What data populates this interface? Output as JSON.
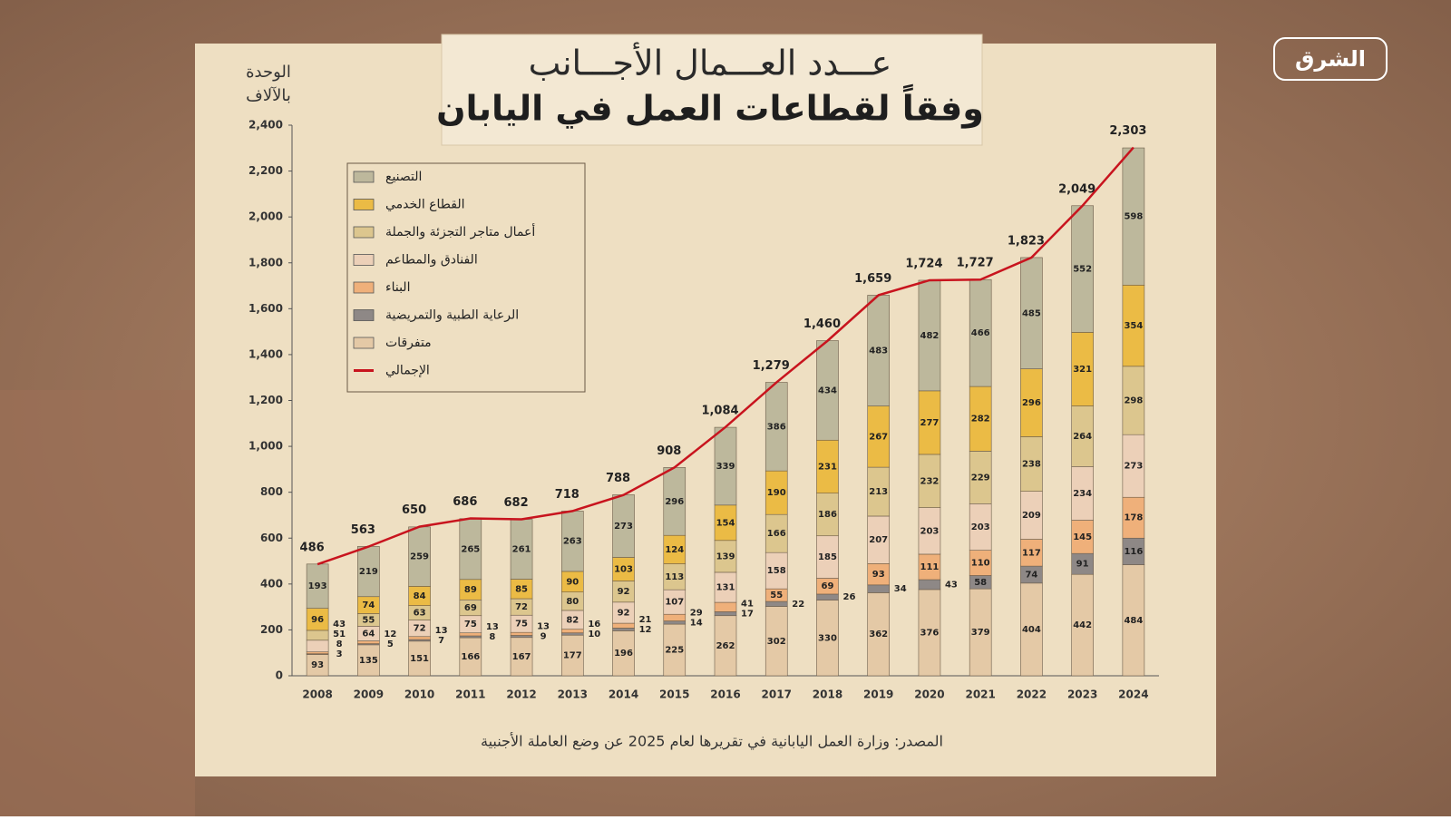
{
  "chart_data": {
    "type": "bar",
    "stacked": true,
    "title": "عـــدد العـــمال الأجـــانب",
    "subtitle": "وفقاً لقطاعات العمل في اليابان",
    "y_label": [
      "الوحدة",
      "بالآلاف"
    ],
    "source": "المصدر: وزارة العمل اليابانية في تقريرها لعام 2025 عن وضع العاملة الأجنبية",
    "logo": "الشرق",
    "legend": "upper left",
    "grid": false,
    "categories": [
      "2008",
      "2009",
      "2010",
      "2011",
      "2012",
      "2013",
      "2014",
      "2015",
      "2016",
      "2017",
      "2018",
      "2019",
      "2020",
      "2021",
      "2022",
      "2023",
      "2024"
    ],
    "ylim": [
      0,
      2400
    ],
    "yticks": [
      0,
      200,
      400,
      600,
      800,
      {
        "value": 1000,
        "label": "1,000"
      },
      {
        "value": 1200,
        "label": "1,200"
      },
      {
        "value": 1400,
        "label": "1,400"
      },
      {
        "value": 1600,
        "label": "1,600"
      },
      {
        "value": 1800,
        "label": "1,800"
      },
      {
        "value": 2000,
        "label": "2,000"
      },
      {
        "value": 2200,
        "label": "2,200"
      },
      {
        "value": 2400,
        "label": "2,400"
      }
    ],
    "series": [
      {
        "name": "متفرقات",
        "color": "#e4c9a6",
        "values": [
          93,
          135,
          151,
          166,
          167,
          177,
          196,
          225,
          262,
          302,
          330,
          362,
          376,
          379,
          404,
          442,
          484
        ]
      },
      {
        "name": "الرعاية الطبية والتمريضية",
        "color": "#8e8886",
        "values": [
          3,
          5,
          7,
          8,
          9,
          10,
          12,
          14,
          17,
          22,
          26,
          34,
          43,
          58,
          74,
          91,
          116
        ]
      },
      {
        "name": "البناء",
        "color": "#efb07a",
        "values": [
          8,
          12,
          13,
          13,
          13,
          16,
          21,
          29,
          41,
          55,
          69,
          93,
          111,
          110,
          117,
          145,
          178
        ]
      },
      {
        "name": "الفنادق والمطاعم",
        "color": "#ecd0b8",
        "values": [
          51,
          64,
          72,
          75,
          75,
          82,
          92,
          107,
          131,
          158,
          185,
          207,
          203,
          203,
          209,
          234,
          273
        ]
      },
      {
        "name": "أعمال متاجر التجزئة والجملة",
        "color": "#dcc68e",
        "values": [
          43,
          55,
          63,
          69,
          72,
          80,
          92,
          113,
          139,
          166,
          186,
          213,
          232,
          229,
          238,
          264,
          298
        ]
      },
      {
        "name": "القطاع الخدمي",
        "color": "#ebbb45",
        "values": [
          96,
          74,
          84,
          89,
          85,
          90,
          103,
          124,
          154,
          190,
          231,
          267,
          277,
          282,
          296,
          321,
          354
        ]
      },
      {
        "name": "التصنيع",
        "color": "#bdb89c",
        "values": [
          193,
          219,
          259,
          265,
          261,
          263,
          273,
          296,
          339,
          386,
          434,
          483,
          482,
          466,
          485,
          552,
          598
        ]
      },
      {
        "name": "الإجمالي",
        "type": "line",
        "color": "#c8141e",
        "values": [
          486,
          563,
          650,
          686,
          682,
          718,
          788,
          908,
          1084,
          1279,
          1460,
          1659,
          1724,
          1727,
          1823,
          2049,
          2303
        ],
        "value_labels": [
          "486",
          "563",
          "650",
          "686",
          "682",
          "718",
          "788",
          "908",
          "1,084",
          "1,279",
          "1,460",
          "1,659",
          "1,724",
          "1,727",
          "1,823",
          "2,049",
          "2,303"
        ]
      }
    ],
    "legend_order": [
      6,
      5,
      4,
      3,
      2,
      1,
      0,
      7
    ]
  }
}
